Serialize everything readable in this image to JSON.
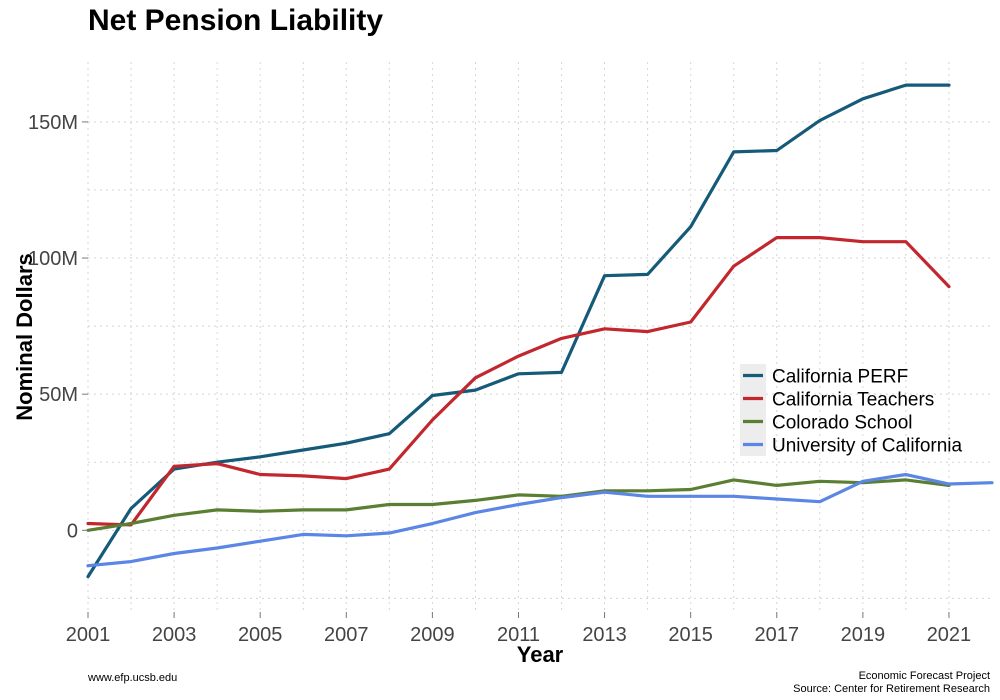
{
  "chart_data": {
    "type": "line",
    "title": "Net Pension Liability",
    "xlabel": "Year",
    "ylabel": "Nominal Dollars",
    "xlim": [
      2001,
      2022
    ],
    "ylim": [
      -30,
      172
    ],
    "x_ticks": [
      2001,
      2003,
      2005,
      2007,
      2009,
      2011,
      2013,
      2015,
      2017,
      2019,
      2021
    ],
    "y_ticks": [
      {
        "value": 0,
        "label": "0"
      },
      {
        "value": 50,
        "label": "50M"
      },
      {
        "value": 100,
        "label": "100M"
      },
      {
        "value": 150,
        "label": "150M"
      }
    ],
    "grid": true,
    "legend_position": "right",
    "series": [
      {
        "name": "California PERF",
        "color": "#155a78",
        "x": [
          2001,
          2002,
          2003,
          2004,
          2005,
          2006,
          2007,
          2008,
          2009,
          2010,
          2011,
          2012,
          2013,
          2014,
          2015,
          2016,
          2017,
          2018,
          2019,
          2020,
          2021
        ],
        "y": [
          -17,
          8,
          22.5,
          25,
          27,
          29.5,
          32,
          35.5,
          49.5,
          51.5,
          57.5,
          58,
          93.5,
          94,
          111.5,
          139,
          139.5,
          150.5,
          158.5,
          163.5,
          163.5
        ]
      },
      {
        "name": "California Teachers",
        "color": "#c1272d",
        "x": [
          2001,
          2002,
          2003,
          2004,
          2005,
          2006,
          2007,
          2008,
          2009,
          2010,
          2011,
          2012,
          2013,
          2014,
          2015,
          2016,
          2017,
          2018,
          2019,
          2020,
          2021
        ],
        "y": [
          2.5,
          2,
          23.5,
          24.5,
          20.5,
          20,
          19,
          22.5,
          40.5,
          56,
          64,
          70.5,
          74,
          73,
          76.5,
          97,
          107.5,
          107.5,
          106,
          106,
          89.5
        ]
      },
      {
        "name": "Colorado School",
        "color": "#5a7e32",
        "x": [
          2001,
          2002,
          2003,
          2004,
          2005,
          2006,
          2007,
          2008,
          2009,
          2010,
          2011,
          2012,
          2013,
          2014,
          2015,
          2016,
          2017,
          2018,
          2019,
          2020,
          2021
        ],
        "y": [
          0,
          2.5,
          5.5,
          7.5,
          7,
          7.5,
          7.5,
          9.5,
          9.5,
          11,
          13,
          12.5,
          14.5,
          14.5,
          15,
          18.5,
          16.5,
          18,
          17.5,
          18.5,
          16.5
        ]
      },
      {
        "name": "University of California",
        "color": "#5b86e5",
        "x": [
          2001,
          2002,
          2003,
          2004,
          2005,
          2006,
          2007,
          2008,
          2009,
          2010,
          2011,
          2012,
          2013,
          2014,
          2015,
          2016,
          2017,
          2018,
          2019,
          2020,
          2021,
          2022
        ],
        "y": [
          -13,
          -11.5,
          -8.5,
          -6.5,
          -4,
          -1.5,
          -2,
          -1,
          2.5,
          6.5,
          9.5,
          12,
          14,
          12.5,
          12.5,
          12.5,
          11.5,
          10.5,
          18,
          20.5,
          17,
          17.5
        ]
      }
    ]
  },
  "footer": {
    "left": "www.efp.ucsb.edu",
    "right_line1": "Economic Forecast Project",
    "right_line2": "Source: Center for Retirement Research"
  }
}
